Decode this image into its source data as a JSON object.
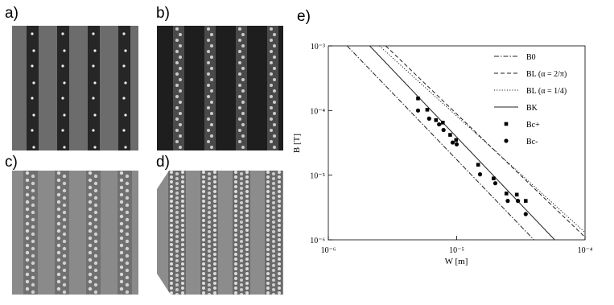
{
  "panels": [
    "a)",
    "b)",
    "c)",
    "d)"
  ],
  "chart_data": {
    "type": "line",
    "title": "e)",
    "x_label": "W [m]",
    "y_label": "B [T]",
    "xscale": "log",
    "yscale": "log",
    "xlim": [
      1e-06,
      0.0001
    ],
    "ylim": [
      1e-06,
      0.001
    ],
    "xticks": [
      {
        "value": 1e-06,
        "label": "10⁻⁶"
      },
      {
        "value": 1e-05,
        "label": "10⁻⁵"
      },
      {
        "value": 0.0001,
        "label": "10⁻⁴"
      }
    ],
    "yticks": [
      {
        "value": 1e-06,
        "label": "10⁻⁶"
      },
      {
        "value": 1e-05,
        "label": "10⁻⁵"
      },
      {
        "value": 0.0001,
        "label": "10⁻⁴"
      },
      {
        "value": 0.001,
        "label": "10⁻³"
      }
    ],
    "grid": false,
    "legend": "upper right",
    "series": [
      {
        "name": "B0",
        "type": "line",
        "style": "dashdot",
        "color": "#222222",
        "x": [
          1.4e-06,
          4e-05
        ],
        "values": [
          0.001,
          1e-06
        ]
      },
      {
        "name": "BL (α = 2/π)",
        "type": "line",
        "style": "dashed",
        "color": "#222222",
        "x": [
          2.8e-06,
          0.0001
        ],
        "values": [
          0.001,
          1.1e-06
        ]
      },
      {
        "name": "BL (α = 1/4)",
        "type": "line",
        "style": "dotted",
        "color": "#222222",
        "x": [
          2.5e-06,
          0.0001
        ],
        "values": [
          0.001,
          1.3e-06
        ]
      },
      {
        "name": "BK",
        "type": "line",
        "style": "solid",
        "color": "#222222",
        "x": [
          2.1e-06,
          5.8e-05
        ],
        "values": [
          0.001,
          1e-06
        ]
      },
      {
        "name": "Bc+",
        "type": "scatter",
        "marker": "square",
        "color": "#000000",
        "x": [
          5e-06,
          5.9e-06,
          6.9e-06,
          7.8e-06,
          8.9e-06,
          9.9e-06,
          1.47e-05,
          1.94e-05,
          2.44e-05,
          2.94e-05,
          3.45e-05
        ],
        "values": [
          0.000154,
          0.000103,
          7.1e-05,
          6.5e-05,
          4.2e-05,
          3.5e-05,
          1.45e-05,
          8.9e-06,
          5.2e-06,
          5e-06,
          4e-06
        ]
      },
      {
        "name": "Bc-",
        "type": "scatter",
        "marker": "circle",
        "color": "#000000",
        "x": [
          5e-06,
          6.1e-06,
          7.3e-06,
          7.9e-06,
          9.3e-06,
          1e-05,
          1.52e-05,
          2e-05,
          2.5e-05,
          3e-05,
          3.45e-05
        ],
        "values": [
          0.0001,
          7.5e-05,
          6.1e-05,
          5e-05,
          3.2e-05,
          3e-05,
          1.03e-05,
          7.5e-06,
          4e-06,
          4e-06,
          2.5e-06
        ]
      }
    ]
  }
}
